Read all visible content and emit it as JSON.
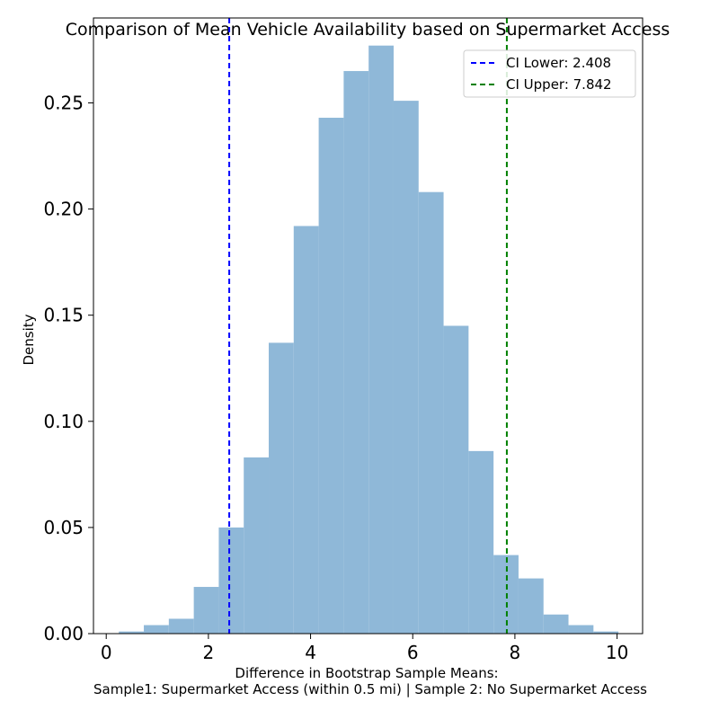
{
  "chart_data": {
    "type": "histogram",
    "title": "Comparison of Mean Vehicle Availability based on Supermarket Access",
    "xlabel_line1": "Difference in Bootstrap Sample Means:",
    "xlabel_line2": "Sample1: Supermarket Access (within 0.5 mi) | Sample 2: No Supermarket Access",
    "ylabel": "Density",
    "xlim": [
      -0.25,
      10.5
    ],
    "ylim": [
      0,
      0.29
    ],
    "xticks": [
      0,
      2,
      4,
      6,
      8,
      10
    ],
    "xtick_labels": [
      "0",
      "2",
      "4",
      "6",
      "8",
      "10"
    ],
    "yticks": [
      0,
      0.05,
      0.1,
      0.15,
      0.2,
      0.25
    ],
    "ytick_labels": [
      "0.00",
      "0.05",
      "0.10",
      "0.15",
      "0.20",
      "0.25"
    ],
    "bin_start": 0.247,
    "bin_width": 0.489,
    "density": [
      0.001,
      0.004,
      0.007,
      0.022,
      0.05,
      0.083,
      0.137,
      0.192,
      0.243,
      0.265,
      0.277,
      0.251,
      0.208,
      0.145,
      0.086,
      0.037,
      0.026,
      0.009,
      0.004,
      0.001
    ],
    "bar_color": "#8fb8d8",
    "ci_lines": [
      {
        "value": 2.408,
        "label": "CI Lower: 2.408",
        "color": "#0000ff"
      },
      {
        "value": 7.842,
        "label": "CI Upper: 7.842",
        "color": "#008000"
      }
    ],
    "legend_position": "top-right"
  }
}
